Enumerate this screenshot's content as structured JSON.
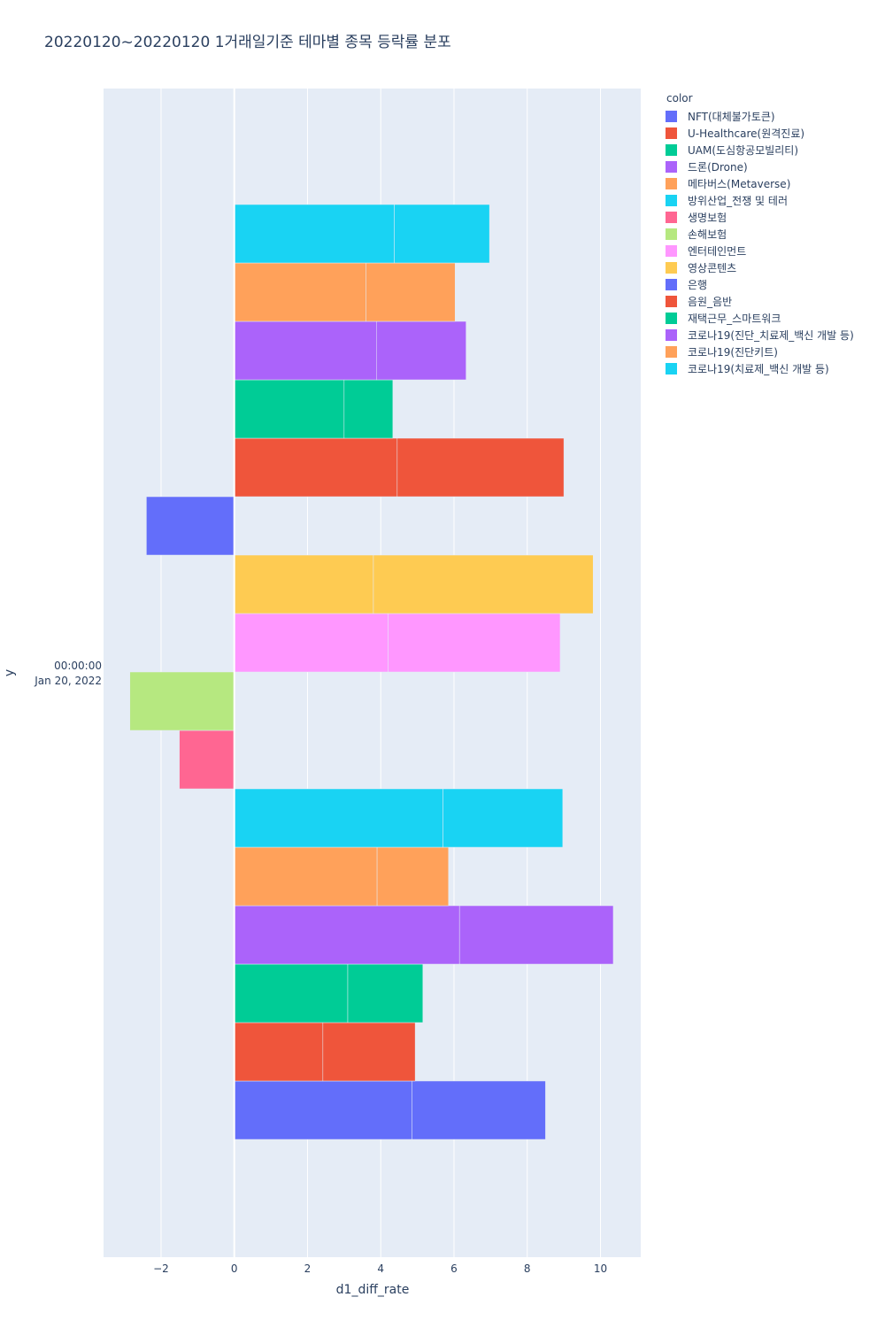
{
  "chart_data": {
    "type": "bar",
    "orientation": "horizontal",
    "barmode": "stack",
    "title": "20220120~20220120 1거래일기준 테마별 종목 등락률 분포",
    "xlabel": "d1_diff_rate",
    "ylabel": "y",
    "y_category": "00:00:00\nJan 20, 2022",
    "y_tick_lines": [
      "00:00:00",
      "Jan 20, 2022"
    ],
    "xlim": [
      -3.57,
      11.1
    ],
    "xticks": [
      -2,
      0,
      2,
      4,
      6,
      8,
      10
    ],
    "xtick_labels": [
      "−2",
      "0",
      "2",
      "4",
      "6",
      "8",
      "10"
    ],
    "grid": true,
    "legend_title": "color",
    "legend_position": "top-right",
    "series": [
      {
        "name": "NFT(대체불가토큰)",
        "color": "#636efa",
        "segments": [
          4.85,
          3.65
        ]
      },
      {
        "name": "U-Healthcare(원격진료)",
        "color": "#EF553B",
        "segments": [
          2.42,
          2.52
        ]
      },
      {
        "name": "UAM(도심항공모빌리티)",
        "color": "#00cc96",
        "segments": [
          3.1,
          2.05
        ]
      },
      {
        "name": "드론(Drone)",
        "color": "#ab63fa",
        "segments": [
          6.15,
          4.2
        ]
      },
      {
        "name": "메타버스(Metaverse)",
        "color": "#FFA15A",
        "segments": [
          3.9,
          1.95
        ]
      },
      {
        "name": "방위산업_전쟁 및 테러",
        "color": "#19d3f3",
        "segments": [
          5.7,
          3.27
        ]
      },
      {
        "name": "생명보험",
        "color": "#FF6692",
        "segments": [
          -1.5
        ]
      },
      {
        "name": "손해보험",
        "color": "#B6E880",
        "segments": [
          -2.85
        ]
      },
      {
        "name": "엔터테인먼트",
        "color": "#FF97FF",
        "segments": [
          4.2,
          4.7
        ]
      },
      {
        "name": "영상콘텐츠",
        "color": "#FECB52",
        "segments": [
          3.8,
          6.0
        ]
      },
      {
        "name": "은행",
        "color": "#636efa",
        "segments": [
          -2.4
        ]
      },
      {
        "name": "음원_음반",
        "color": "#EF553B",
        "segments": [
          4.45,
          4.55
        ]
      },
      {
        "name": "재택근무_스마트워크",
        "color": "#00cc96",
        "segments": [
          3.0,
          1.33
        ]
      },
      {
        "name": "코로나19(진단_치료제_백신 개발 등)",
        "color": "#ab63fa",
        "segments": [
          3.88,
          2.45
        ]
      },
      {
        "name": "코로나19(진단키트)",
        "color": "#FFA15A",
        "segments": [
          3.6,
          2.43
        ]
      },
      {
        "name": "코로나19(치료제_백신 개발 등)",
        "color": "#19d3f3",
        "segments": [
          4.37,
          2.6
        ]
      }
    ]
  }
}
